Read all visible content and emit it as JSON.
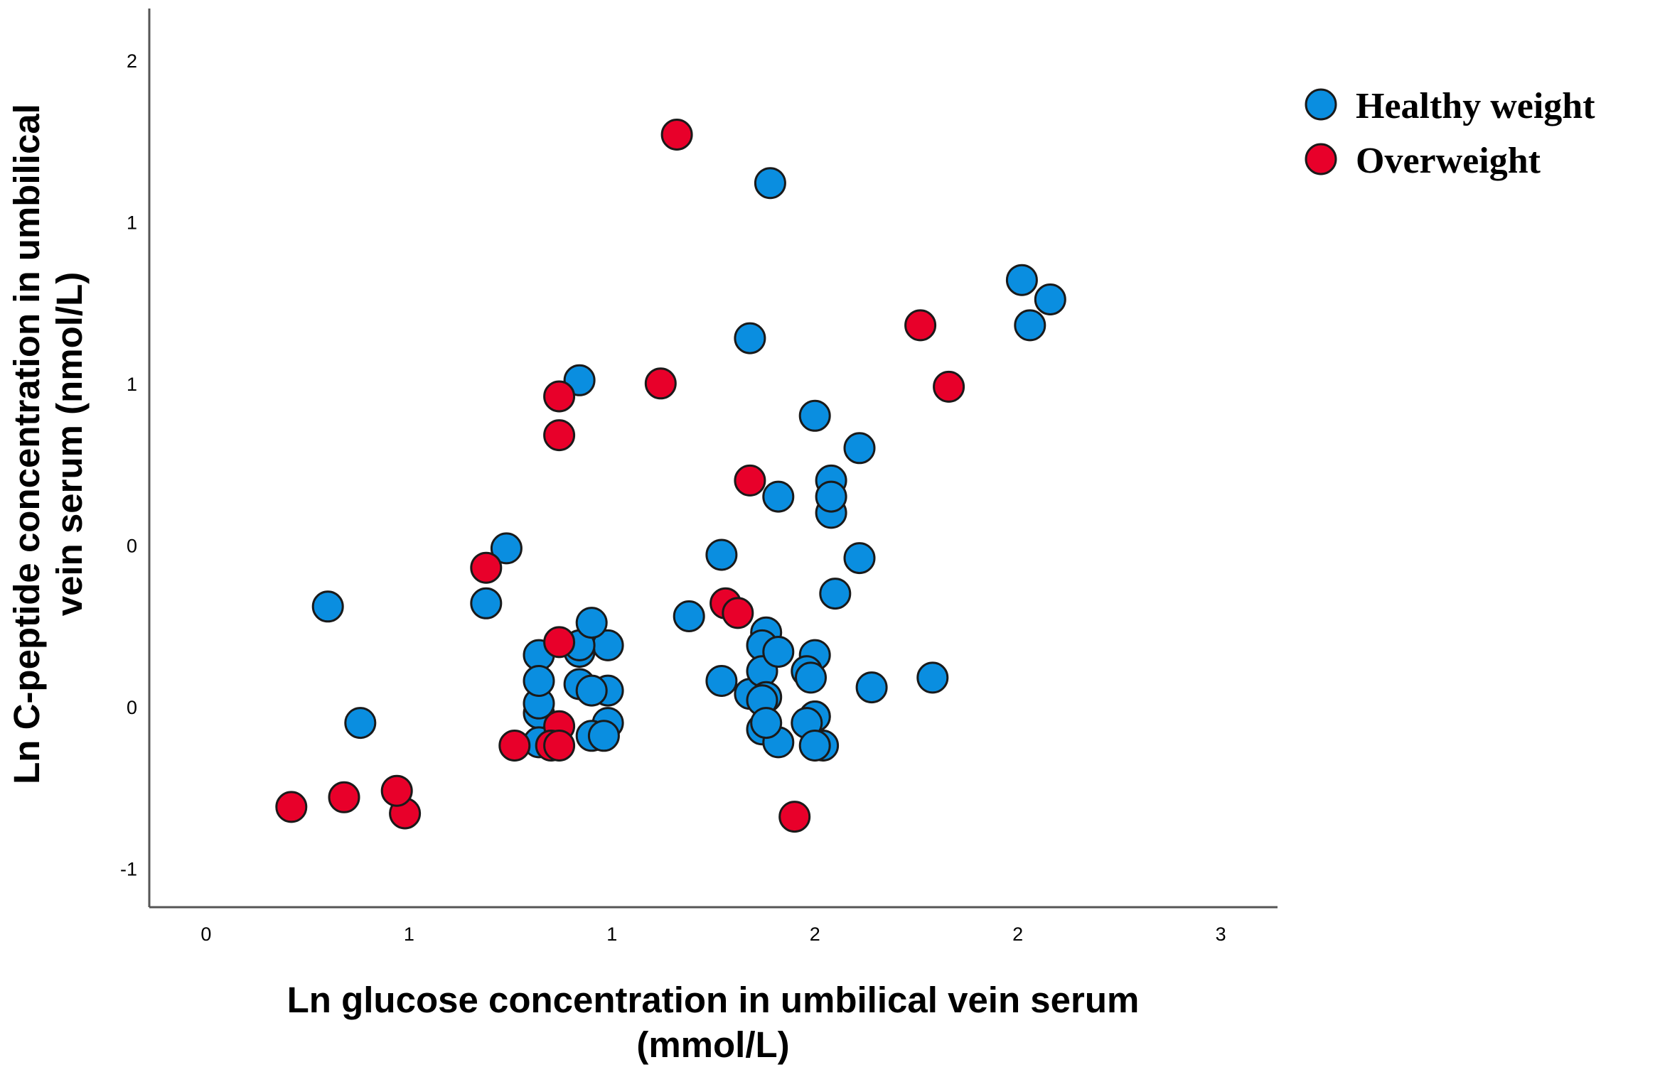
{
  "chart_data": {
    "type": "scatter",
    "xlabel": [
      "Ln glucose concentration in umbilical vein serum",
      "(mmol/L)"
    ],
    "ylabel": [
      "Ln C-peptide concentration in umbilical",
      "vein serum (nmol/L)"
    ],
    "x_ticks": [
      {
        "value": 0.0,
        "label": "0"
      },
      {
        "value": 0.5,
        "label": "1"
      },
      {
        "value": 1.0,
        "label": "1"
      },
      {
        "value": 1.5,
        "label": "2"
      },
      {
        "value": 2.0,
        "label": "2"
      },
      {
        "value": 2.5,
        "label": "3"
      }
    ],
    "y_ticks": [
      {
        "value": -1.0,
        "label": "-1"
      },
      {
        "value": -0.5,
        "label": "0"
      },
      {
        "value": 0.0,
        "label": "0"
      },
      {
        "value": 0.5,
        "label": "1"
      },
      {
        "value": 1.0,
        "label": "1"
      },
      {
        "value": 1.5,
        "label": "2"
      }
    ],
    "xlim": [
      -0.14,
      2.64
    ],
    "ylim": [
      -1.12,
      1.66
    ],
    "grid": false,
    "legend_position": "top-right",
    "series": [
      {
        "name": "Healthy weight",
        "color": "#0a8ee0",
        "points": [
          [
            0.69,
            -0.18
          ],
          [
            1.61,
            -0.04
          ],
          [
            1.39,
            1.12
          ],
          [
            1.5,
            0.4
          ],
          [
            1.34,
            0.64
          ],
          [
            0.92,
            0.51
          ],
          [
            2.03,
            0.68
          ],
          [
            1.54,
            0.1
          ],
          [
            2.01,
            0.82
          ],
          [
            2.08,
            0.76
          ],
          [
            1.54,
            0.2
          ],
          [
            1.61,
            0.3
          ],
          [
            1.41,
            0.15
          ],
          [
            1.27,
            -0.03
          ],
          [
            0.74,
            -0.01
          ],
          [
            1.19,
            -0.22
          ],
          [
            0.3,
            -0.19
          ],
          [
            1.38,
            -0.27
          ],
          [
            0.99,
            -0.31
          ],
          [
            0.92,
            -0.33
          ],
          [
            0.92,
            -0.31
          ],
          [
            1.37,
            -0.31
          ],
          [
            0.82,
            -0.34
          ],
          [
            1.34,
            -0.46
          ],
          [
            1.5,
            -0.34
          ],
          [
            1.64,
            -0.44
          ],
          [
            1.48,
            -0.39
          ],
          [
            1.5,
            -0.53
          ],
          [
            0.92,
            -0.43
          ],
          [
            1.79,
            -0.41
          ],
          [
            1.49,
            -0.41
          ],
          [
            0.82,
            -0.52
          ],
          [
            1.37,
            -0.39
          ],
          [
            0.38,
            -0.55
          ],
          [
            1.38,
            -0.47
          ],
          [
            1.37,
            -0.57
          ],
          [
            0.99,
            -0.55
          ],
          [
            0.82,
            -0.61
          ],
          [
            1.5,
            -0.53
          ],
          [
            0.95,
            -0.24
          ],
          [
            0.95,
            -0.59
          ],
          [
            0.98,
            -0.59
          ],
          [
            1.37,
            -0.48
          ],
          [
            1.41,
            -0.61
          ],
          [
            1.55,
            -0.15
          ],
          [
            0.82,
            -0.49
          ],
          [
            1.52,
            -0.62
          ],
          [
            1.48,
            -0.55
          ],
          [
            1.5,
            -0.62
          ],
          [
            0.99,
            -0.45
          ],
          [
            0.82,
            -0.42
          ],
          [
            0.95,
            -0.45
          ],
          [
            1.41,
            -0.33
          ],
          [
            1.38,
            -0.55
          ],
          [
            1.54,
            0.15
          ],
          [
            1.27,
            -0.42
          ]
        ]
      },
      {
        "name": "Overweight",
        "color": "#e8002a",
        "points": [
          [
            1.16,
            1.27
          ],
          [
            1.76,
            0.68
          ],
          [
            1.83,
            0.49
          ],
          [
            1.12,
            0.5
          ],
          [
            0.87,
            0.46
          ],
          [
            0.87,
            0.34
          ],
          [
            1.34,
            0.2
          ],
          [
            0.69,
            -0.07
          ],
          [
            1.28,
            -0.18
          ],
          [
            1.31,
            -0.21
          ],
          [
            0.87,
            -0.3
          ],
          [
            0.87,
            -0.56
          ],
          [
            0.85,
            -0.62
          ],
          [
            0.87,
            -0.62
          ],
          [
            0.76,
            -0.62
          ],
          [
            1.45,
            -0.84
          ],
          [
            0.49,
            -0.83
          ],
          [
            0.47,
            -0.76
          ],
          [
            0.21,
            -0.81
          ],
          [
            0.34,
            -0.78
          ]
        ]
      }
    ]
  }
}
